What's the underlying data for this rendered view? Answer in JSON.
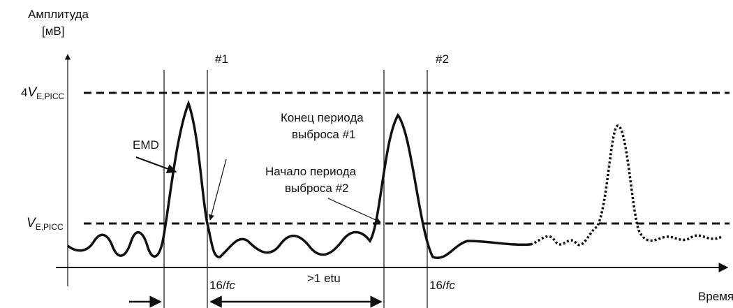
{
  "axes": {
    "y_label": [
      "Амплитуда",
      "[мВ]"
    ],
    "x_label": "Время"
  },
  "levels": [
    {
      "prefix": "4",
      "symbol": "V",
      "subscript": "E,PICC"
    },
    {
      "symbol": "V",
      "subscript": "E,PICC"
    }
  ],
  "markers": [
    "#1",
    "#2"
  ],
  "annotations": {
    "emd": "EMD",
    "end": [
      "Конец периода",
      "выброса #1"
    ],
    "start": [
      "Начало периода",
      "выброса #2"
    ]
  },
  "intervals": [
    {
      "number": "16/",
      "unit": "fc"
    },
    {
      "label": ">1 etu"
    },
    {
      "number": "16/",
      "unit": "fc"
    }
  ]
}
